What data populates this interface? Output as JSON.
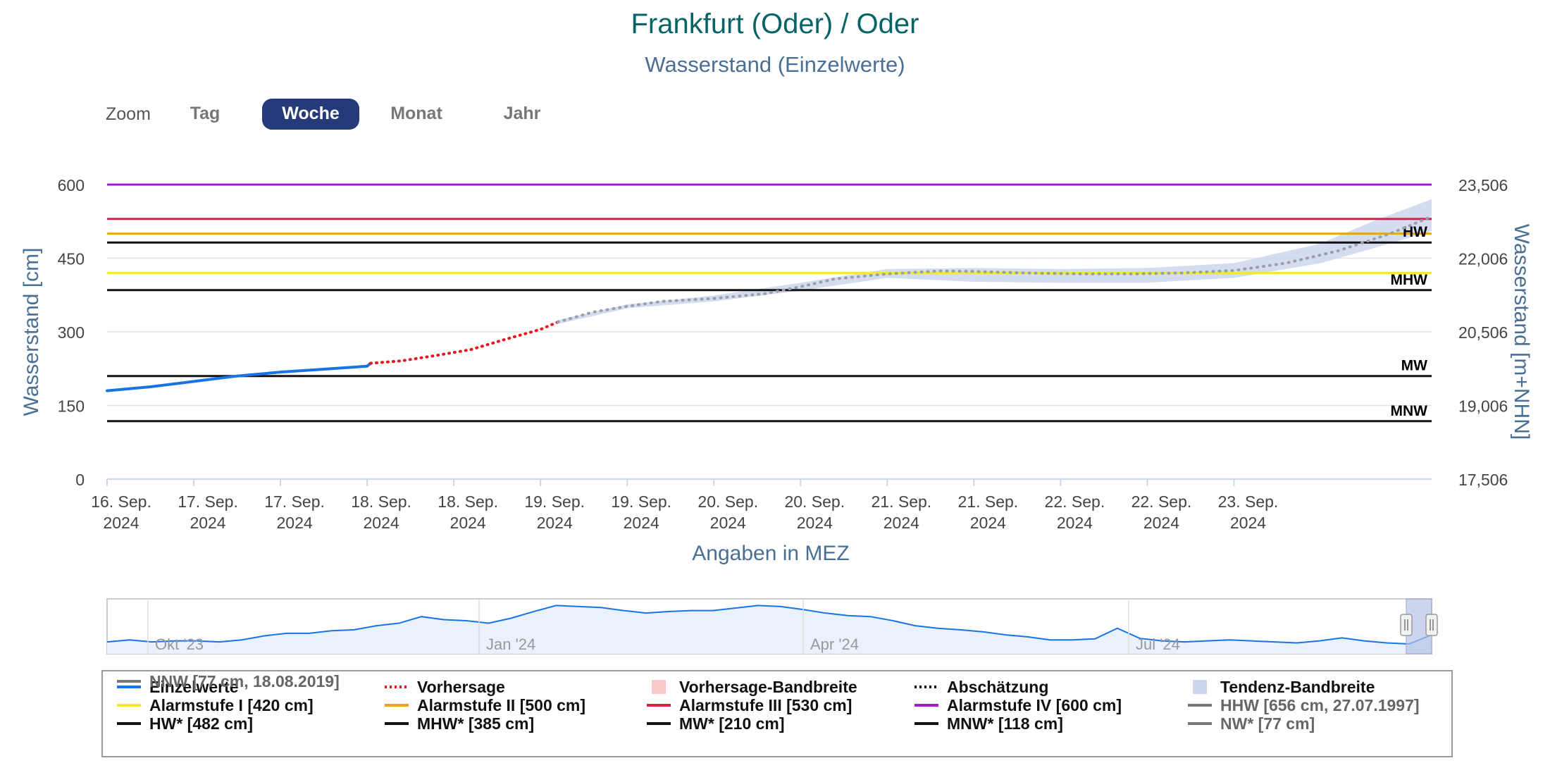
{
  "header": {
    "title": "Frankfurt (Oder) / Oder",
    "subtitle": "Wasserstand (Einzelwerte)"
  },
  "zoom": {
    "label": "Zoom",
    "buttons": [
      "Tag",
      "Woche",
      "Monat",
      "Jahr"
    ],
    "active": "Woche"
  },
  "chart_data": {
    "type": "line",
    "ylabel": "Wasserstand [cm]",
    "ylabel_right": "Wasserstand [m+NHN]",
    "xlabel": "Angaben in MEZ",
    "ylim": [
      0,
      600
    ],
    "y_ticks": [
      "0",
      "150",
      "300",
      "450",
      "600"
    ],
    "y_ticks_right": [
      "17,506",
      "19,006",
      "20,506",
      "22,006",
      "23,506"
    ],
    "x_tick_labels": [
      [
        "16. Sep.",
        "2024"
      ],
      [
        "17. Sep.",
        "2024"
      ],
      [
        "17. Sep.",
        "2024"
      ],
      [
        "18. Sep.",
        "2024"
      ],
      [
        "18. Sep.",
        "2024"
      ],
      [
        "19. Sep.",
        "2024"
      ],
      [
        "19. Sep.",
        "2024"
      ],
      [
        "20. Sep.",
        "2024"
      ],
      [
        "20. Sep.",
        "2024"
      ],
      [
        "21. Sep.",
        "2024"
      ],
      [
        "21. Sep.",
        "2024"
      ],
      [
        "22. Sep.",
        "2024"
      ],
      [
        "22. Sep.",
        "2024"
      ],
      [
        "23. Sep.",
        "2024"
      ]
    ],
    "x_range_days": [
      16.0,
      23.64
    ],
    "series": [
      {
        "name": "Einzelwerte",
        "color": "#1874e5",
        "x": [
          16.0,
          16.25,
          16.5,
          16.75,
          17.0,
          17.25,
          17.5,
          17.52
        ],
        "values": [
          180,
          188,
          199,
          210,
          218,
          224,
          230,
          236
        ]
      },
      {
        "name": "Vorhersage",
        "color": "#e8141e",
        "x": [
          17.52,
          17.7,
          17.9,
          18.1,
          18.3,
          18.5,
          18.6
        ],
        "values": [
          236,
          241,
          252,
          264,
          285,
          305,
          320
        ]
      },
      {
        "name": "Abschätzung",
        "color": "#9aa0aa",
        "x": [
          18.6,
          18.8,
          19.0,
          19.2,
          19.5,
          19.8,
          20.0,
          20.2,
          20.5,
          20.8,
          21.0,
          21.3,
          21.6,
          21.9,
          22.2,
          22.5,
          22.8,
          23.1,
          23.4,
          23.64
        ],
        "values": [
          320,
          340,
          352,
          362,
          368,
          378,
          392,
          408,
          418,
          424,
          423,
          420,
          418,
          418,
          420,
          425,
          440,
          465,
          500,
          535
        ]
      }
    ],
    "band": {
      "name": "Tendenz-Bandbreite",
      "color": "#cdd6ec",
      "x": [
        18.6,
        19.0,
        19.5,
        20.0,
        20.5,
        21.0,
        21.5,
        22.0,
        22.5,
        23.0,
        23.3,
        23.64
      ],
      "upper": [
        324,
        356,
        374,
        400,
        428,
        430,
        428,
        430,
        440,
        480,
        525,
        570
      ],
      "lower": [
        316,
        348,
        362,
        384,
        410,
        402,
        400,
        400,
        410,
        440,
        470,
        505
      ]
    },
    "thresholds": [
      {
        "value": 600,
        "color": "#a21cd6"
      },
      {
        "value": 530,
        "color": "#dc1f45"
      },
      {
        "value": 500,
        "color": "#f0a21b"
      },
      {
        "value": 482,
        "color": "#111111",
        "label": "HW"
      },
      {
        "value": 420,
        "color": "#f5e62e"
      },
      {
        "value": 385,
        "color": "#111111",
        "label": "MHW"
      },
      {
        "value": 210,
        "color": "#111111",
        "label": "MW"
      },
      {
        "value": 118,
        "color": "#111111",
        "label": "MNW"
      }
    ],
    "navigator": {
      "labels": [
        "Okt '23",
        "Jan '24",
        "Apr '24",
        "Jul '24"
      ],
      "values": [
        0.18,
        0.22,
        0.18,
        0.2,
        0.2,
        0.18,
        0.22,
        0.3,
        0.35,
        0.35,
        0.4,
        0.42,
        0.5,
        0.55,
        0.68,
        0.62,
        0.6,
        0.55,
        0.65,
        0.78,
        0.9,
        0.88,
        0.86,
        0.8,
        0.75,
        0.78,
        0.8,
        0.8,
        0.85,
        0.9,
        0.88,
        0.82,
        0.75,
        0.7,
        0.68,
        0.6,
        0.5,
        0.45,
        0.42,
        0.38,
        0.32,
        0.28,
        0.22,
        0.22,
        0.24,
        0.45,
        0.25,
        0.2,
        0.18,
        0.2,
        0.22,
        0.2,
        0.18,
        0.16,
        0.2,
        0.26,
        0.2,
        0.16,
        0.14,
        0.32
      ]
    }
  },
  "legend": {
    "items": [
      {
        "label": "Einzelwerte",
        "type": "line",
        "color": "#1874e5"
      },
      {
        "label": "Vorhersage",
        "type": "dotted",
        "color": "#e8141e"
      },
      {
        "label": "Vorhersage-Bandbreite",
        "type": "box",
        "color": "#f7caca"
      },
      {
        "label": "Abschätzung",
        "type": "dotted",
        "color": "#111111"
      },
      {
        "label": "Tendenz-Bandbreite",
        "type": "box",
        "color": "#cdd6ec"
      },
      {
        "label": "Alarmstufe I [420 cm]",
        "type": "line",
        "color": "#f5e62e"
      },
      {
        "label": "Alarmstufe II [500 cm]",
        "type": "line",
        "color": "#f0a21b"
      },
      {
        "label": "Alarmstufe III [530 cm]",
        "type": "line",
        "color": "#dc1f45"
      },
      {
        "label": "Alarmstufe IV [600 cm]",
        "type": "line",
        "color": "#a21cd6"
      },
      {
        "label": "HHW [656 cm, 27.07.1997]",
        "type": "line",
        "color": "#777777",
        "muted": true
      },
      {
        "label": "HW* [482 cm]",
        "type": "line",
        "color": "#111111"
      },
      {
        "label": "MHW* [385 cm]",
        "type": "line",
        "color": "#111111"
      },
      {
        "label": "MW* [210 cm]",
        "type": "line",
        "color": "#111111"
      },
      {
        "label": "MNW* [118 cm]",
        "type": "line",
        "color": "#111111"
      },
      {
        "label": "NW* [77 cm]",
        "type": "line",
        "color": "#777777",
        "muted": true
      },
      {
        "label": "NNW [77 cm, 18.08.2019]",
        "type": "line",
        "color": "#777777",
        "muted": true
      }
    ]
  }
}
